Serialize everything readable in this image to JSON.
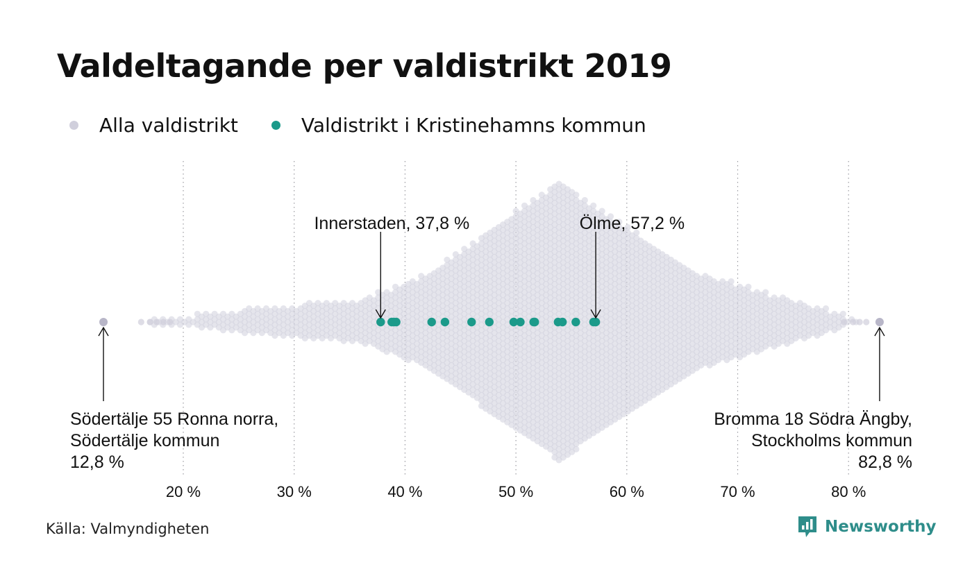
{
  "colors": {
    "all": "#d0cfdc",
    "highlight": "#1b9a8a",
    "brand": "#2e8d8a"
  },
  "legend": {
    "all_label": "Alla valdistrikt",
    "highlight_label": "Valdistrikt i Kristinehamns kommun"
  },
  "source": "Källa: Valmyndigheten",
  "brand": {
    "name": "Newsworthy",
    "icon": "bar-chart-speech-bubble-icon"
  },
  "chart_data": {
    "type": "scatter",
    "title": "Valdeltagande per valdistrikt 2019",
    "xlim": [
      13,
      83
    ],
    "x_ticks": [
      20,
      30,
      40,
      50,
      60,
      70,
      80
    ],
    "x_tick_labels": [
      "20 %",
      "30 %",
      "40 %",
      "50 %",
      "60 %",
      "70 %",
      "80 %"
    ],
    "grid": "vertical-dotted",
    "legend_position": "top-left",
    "series": [
      {
        "name": "Alla valdistrikt",
        "color": "#d0cfdc",
        "distribution": "beeswarm",
        "min": 12.8,
        "max": 82.8,
        "mode": 53.9
      },
      {
        "name": "Valdistrikt i Kristinehamns kommun",
        "color": "#1b9a8a",
        "values": [
          37.8,
          38.8,
          39.0,
          39.2,
          42.4,
          43.6,
          46.0,
          47.6,
          49.8,
          50.4,
          51.6,
          51.7,
          53.8,
          54.2,
          55.4,
          57.0,
          57.2
        ]
      }
    ],
    "annotations": [
      {
        "x": 12.8,
        "position": "below",
        "lines": [
          "Södertälje 55 Ronna norra,",
          "Södertälje kommun",
          "12,8 %"
        ]
      },
      {
        "x": 82.8,
        "position": "below",
        "lines": [
          "Bromma 18 Södra Ängby,",
          "Stockholms kommun",
          "82,8 %"
        ]
      },
      {
        "x": 37.8,
        "position": "above",
        "lines": [
          "Innerstaden, 37,8 %"
        ]
      },
      {
        "x": 57.2,
        "position": "above",
        "lines": [
          "Ölme, 57,2 %"
        ]
      }
    ]
  }
}
